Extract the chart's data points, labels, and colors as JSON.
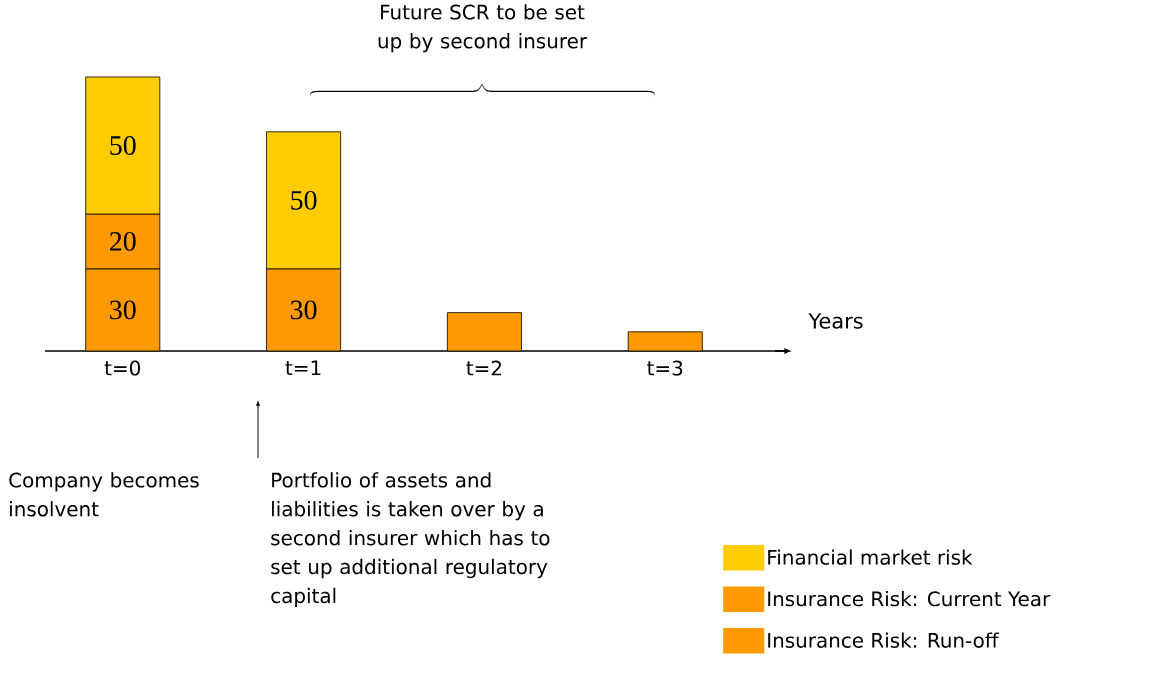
{
  "chart_data": {
    "type": "bar",
    "stacked": true,
    "xlabel": "Years",
    "categories": [
      "t=0",
      "t=1",
      "t=2",
      "t=3"
    ],
    "series": [
      {
        "name": "Insurance Risk: Run-off",
        "color": "#ff9900",
        "values": [
          30,
          30,
          14,
          7
        ],
        "value_labels": [
          "30",
          "30",
          null,
          null
        ]
      },
      {
        "name": "Insurance Risk: Current Year",
        "color": "#ff9900",
        "values": [
          20,
          null,
          null,
          null
        ],
        "value_labels": [
          "20",
          null,
          null,
          null
        ]
      },
      {
        "name": "Financial market risk",
        "color": "#ffcc00",
        "values": [
          50,
          50,
          null,
          null
        ],
        "value_labels": [
          "50",
          "50",
          null,
          null
        ]
      }
    ],
    "legend": "bottom right",
    "annotations": [
      "Future SCR to be set up by second insurer",
      "Company becomes insolvent",
      "Portfolio of assets and liabilities is taken over by a second insurer which has to set up additional regulatory capital"
    ]
  }
}
